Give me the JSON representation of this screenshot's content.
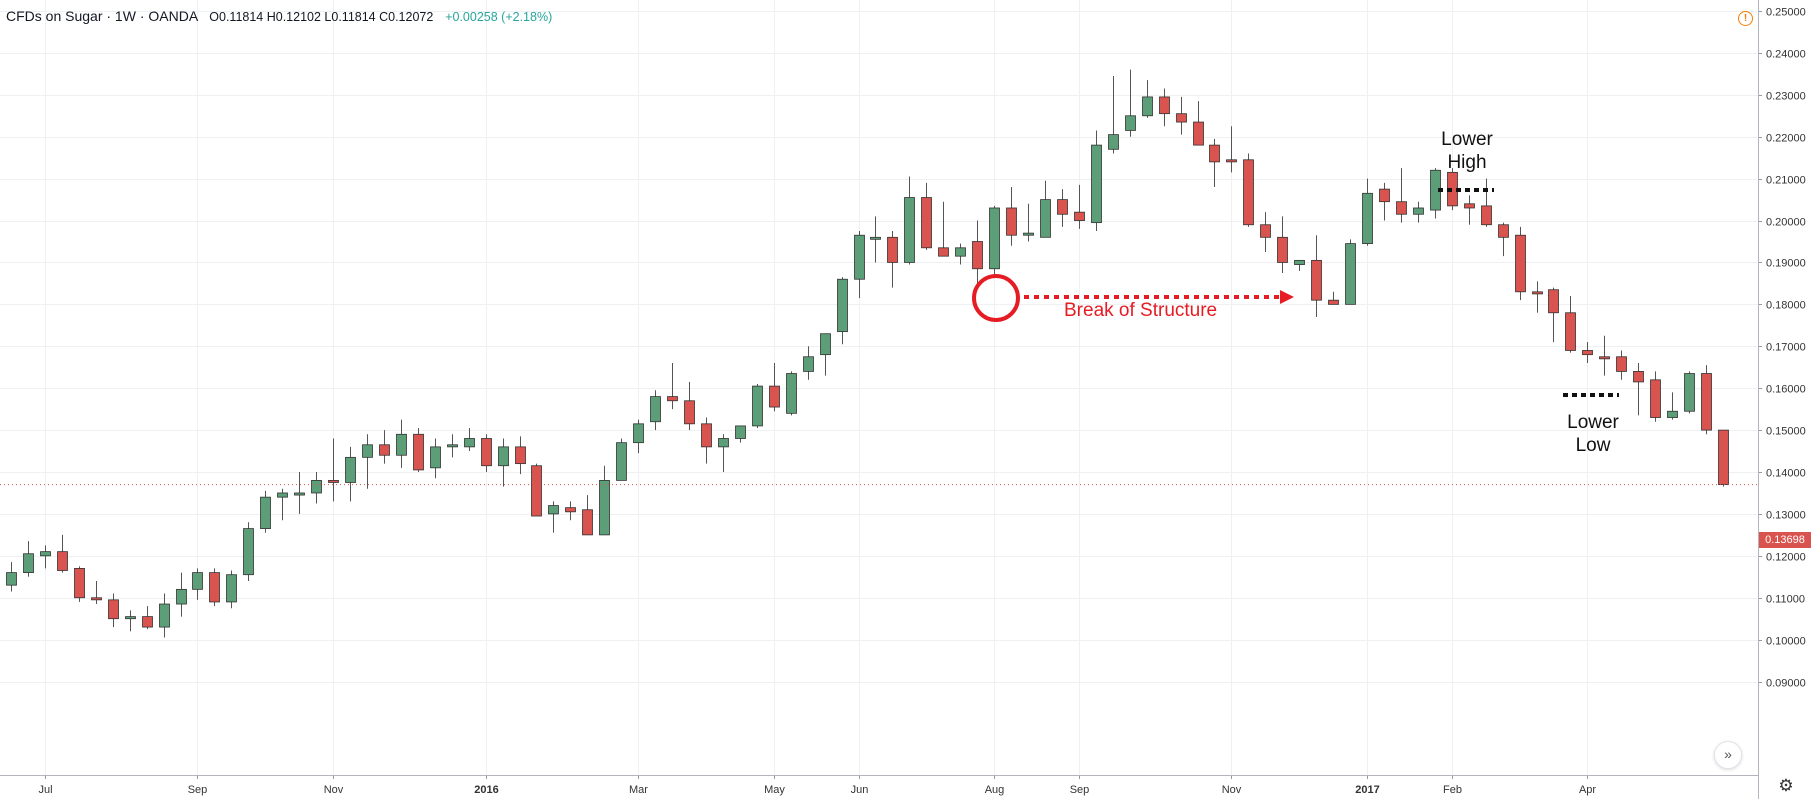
{
  "header": {
    "title": "CFDs on Sugar · 1W · OANDA",
    "ohlc": "O0.11814 H0.12102 L0.11814 C0.12072",
    "change": "+0.00258 (+2.18%)"
  },
  "icons": {
    "warning": "warning-icon",
    "scroll": "scroll-to-latest-icon",
    "settings": "gear-icon"
  },
  "last_price_label": "0.13698",
  "colors": {
    "up": "#5b9e78",
    "down": "#d9534f",
    "annotation": "#e51c23",
    "grid": "#eef0f3"
  },
  "annotations": {
    "break_of_structure": "Break of Structure",
    "lower_high_1": "Lower",
    "lower_high_2": "High",
    "lower_low_1": "Lower",
    "lower_low_2": "Low"
  },
  "chart_data": {
    "type": "candlestick",
    "title": "CFDs on Sugar · 1W · OANDA",
    "ylim": [
      0.085,
      0.252
    ],
    "y_ticks": [
      "0.09000",
      "0.10000",
      "0.11000",
      "0.12000",
      "0.13000",
      "0.14000",
      "0.15000",
      "0.16000",
      "0.17000",
      "0.18000",
      "0.19000",
      "0.20000",
      "0.21000",
      "0.22000",
      "0.23000",
      "0.24000",
      "0.25000"
    ],
    "x_ticks": [
      {
        "label": "Jul",
        "index": 2
      },
      {
        "label": "Sep",
        "index": 11
      },
      {
        "label": "Nov",
        "index": 19
      },
      {
        "label": "2016",
        "index": 28
      },
      {
        "label": "Mar",
        "index": 37
      },
      {
        "label": "May",
        "index": 45
      },
      {
        "label": "Jun",
        "index": 50
      },
      {
        "label": "Aug",
        "index": 58
      },
      {
        "label": "Sep",
        "index": 63
      },
      {
        "label": "Nov",
        "index": 72
      },
      {
        "label": "2017",
        "index": 80
      },
      {
        "label": "Feb",
        "index": 85
      },
      {
        "label": "Apr",
        "index": 93
      }
    ],
    "candles": [
      [
        0.113,
        0.1185,
        0.1115,
        0.116
      ],
      [
        0.116,
        0.1235,
        0.115,
        0.1205
      ],
      [
        0.12,
        0.1225,
        0.117,
        0.121
      ],
      [
        0.121,
        0.125,
        0.116,
        0.1165
      ],
      [
        0.117,
        0.1175,
        0.109,
        0.11
      ],
      [
        0.11,
        0.114,
        0.1085,
        0.1095
      ],
      [
        0.1095,
        0.111,
        0.103,
        0.105
      ],
      [
        0.105,
        0.107,
        0.102,
        0.1055
      ],
      [
        0.1055,
        0.108,
        0.1025,
        0.103
      ],
      [
        0.103,
        0.111,
        0.1005,
        0.1085
      ],
      [
        0.1085,
        0.116,
        0.1055,
        0.112
      ],
      [
        0.112,
        0.117,
        0.1095,
        0.116
      ],
      [
        0.116,
        0.117,
        0.108,
        0.109
      ],
      [
        0.109,
        0.1165,
        0.1075,
        0.1155
      ],
      [
        0.1155,
        0.128,
        0.114,
        0.1265
      ],
      [
        0.1265,
        0.1355,
        0.1255,
        0.134
      ],
      [
        0.134,
        0.136,
        0.1285,
        0.135
      ],
      [
        0.1345,
        0.14,
        0.13,
        0.135
      ],
      [
        0.135,
        0.14,
        0.1325,
        0.138
      ],
      [
        0.138,
        0.148,
        0.133,
        0.1375
      ],
      [
        0.1375,
        0.146,
        0.133,
        0.1435
      ],
      [
        0.1435,
        0.149,
        0.136,
        0.1465
      ],
      [
        0.1465,
        0.15,
        0.142,
        0.144
      ],
      [
        0.144,
        0.1525,
        0.141,
        0.149
      ],
      [
        0.149,
        0.1505,
        0.14,
        0.1405
      ],
      [
        0.141,
        0.148,
        0.1385,
        0.146
      ],
      [
        0.146,
        0.149,
        0.1435,
        0.1465
      ],
      [
        0.146,
        0.1505,
        0.145,
        0.148
      ],
      [
        0.148,
        0.149,
        0.14,
        0.1415
      ],
      [
        0.1415,
        0.148,
        0.1365,
        0.146
      ],
      [
        0.146,
        0.1485,
        0.1395,
        0.142
      ],
      [
        0.1415,
        0.142,
        0.1295,
        0.1295
      ],
      [
        0.13,
        0.133,
        0.1255,
        0.132
      ],
      [
        0.1315,
        0.133,
        0.1285,
        0.1305
      ],
      [
        0.131,
        0.1345,
        0.125,
        0.125
      ],
      [
        0.125,
        0.1415,
        0.125,
        0.138
      ],
      [
        0.138,
        0.148,
        0.138,
        0.147
      ],
      [
        0.147,
        0.1525,
        0.1445,
        0.1515
      ],
      [
        0.152,
        0.1595,
        0.15,
        0.158
      ],
      [
        0.158,
        0.166,
        0.155,
        0.157
      ],
      [
        0.157,
        0.1615,
        0.15,
        0.1515
      ],
      [
        0.1515,
        0.153,
        0.142,
        0.146
      ],
      [
        0.146,
        0.149,
        0.14,
        0.148
      ],
      [
        0.148,
        0.15,
        0.147,
        0.151
      ],
      [
        0.151,
        0.161,
        0.1505,
        0.1605
      ],
      [
        0.1605,
        0.166,
        0.1545,
        0.1555
      ],
      [
        0.154,
        0.164,
        0.1535,
        0.1635
      ],
      [
        0.164,
        0.17,
        0.162,
        0.1675
      ],
      [
        0.168,
        0.172,
        0.163,
        0.173
      ],
      [
        0.1735,
        0.1865,
        0.1705,
        0.186
      ],
      [
        0.186,
        0.1975,
        0.1815,
        0.1965
      ],
      [
        0.196,
        0.201,
        0.19,
        0.196
      ],
      [
        0.196,
        0.1975,
        0.184,
        0.19
      ],
      [
        0.19,
        0.2105,
        0.1895,
        0.2055
      ],
      [
        0.2055,
        0.209,
        0.193,
        0.1935
      ],
      [
        0.1935,
        0.2045,
        0.1915,
        0.1915
      ],
      [
        0.1915,
        0.1945,
        0.1895,
        0.1935
      ],
      [
        0.195,
        0.2,
        0.185,
        0.1885
      ],
      [
        0.1885,
        0.2035,
        0.187,
        0.203
      ],
      [
        0.203,
        0.208,
        0.194,
        0.1965
      ],
      [
        0.1965,
        0.204,
        0.195,
        0.197
      ],
      [
        0.196,
        0.2095,
        0.196,
        0.205
      ],
      [
        0.205,
        0.2075,
        0.1985,
        0.2015
      ],
      [
        0.202,
        0.2085,
        0.198,
        0.2
      ],
      [
        0.1995,
        0.2215,
        0.1975,
        0.218
      ],
      [
        0.217,
        0.2345,
        0.216,
        0.2205
      ],
      [
        0.2215,
        0.236,
        0.22,
        0.225
      ],
      [
        0.225,
        0.2335,
        0.2245,
        0.2295
      ],
      [
        0.2295,
        0.2315,
        0.2225,
        0.2255
      ],
      [
        0.2255,
        0.2295,
        0.2205,
        0.2235
      ],
      [
        0.2235,
        0.2285,
        0.218,
        0.218
      ],
      [
        0.218,
        0.2195,
        0.208,
        0.214
      ],
      [
        0.2145,
        0.2225,
        0.2115,
        0.214
      ],
      [
        0.2145,
        0.216,
        0.1985,
        0.199
      ],
      [
        0.199,
        0.202,
        0.1925,
        0.196
      ],
      [
        0.196,
        0.201,
        0.1875,
        0.19
      ],
      [
        0.1895,
        0.19,
        0.188,
        0.1905
      ],
      [
        0.1905,
        0.1965,
        0.177,
        0.181
      ],
      [
        0.181,
        0.183,
        0.18,
        0.18
      ],
      [
        0.18,
        0.1955,
        0.18,
        0.1945
      ],
      [
        0.1945,
        0.21,
        0.194,
        0.2065
      ],
      [
        0.2075,
        0.209,
        0.2,
        0.2045
      ],
      [
        0.2045,
        0.2125,
        0.1995,
        0.2015
      ],
      [
        0.2015,
        0.2045,
        0.1995,
        0.203
      ],
      [
        0.2025,
        0.2125,
        0.2005,
        0.212
      ],
      [
        0.2115,
        0.2125,
        0.2025,
        0.2035
      ],
      [
        0.204,
        0.206,
        0.199,
        0.203
      ],
      [
        0.2035,
        0.21,
        0.1985,
        0.199
      ],
      [
        0.199,
        0.1995,
        0.1915,
        0.196
      ],
      [
        0.1965,
        0.1985,
        0.181,
        0.183
      ],
      [
        0.183,
        0.1855,
        0.178,
        0.1825
      ],
      [
        0.1835,
        0.184,
        0.171,
        0.178
      ],
      [
        0.178,
        0.182,
        0.1685,
        0.169
      ],
      [
        0.169,
        0.171,
        0.166,
        0.168
      ],
      [
        0.1675,
        0.1725,
        0.163,
        0.167
      ],
      [
        0.1675,
        0.169,
        0.162,
        0.164
      ],
      [
        0.164,
        0.166,
        0.1535,
        0.1615
      ],
      [
        0.162,
        0.164,
        0.152,
        0.153
      ],
      [
        0.153,
        0.159,
        0.1525,
        0.1545
      ],
      [
        0.1545,
        0.164,
        0.154,
        0.1635
      ],
      [
        0.1635,
        0.1655,
        0.149,
        0.15
      ],
      [
        0.15,
        0.15,
        0.1365,
        0.137
      ]
    ],
    "series": [
      {
        "name": "",
        "fields": [
          "open",
          "high",
          "low",
          "close"
        ]
      }
    ],
    "last_price": 0.13698
  }
}
